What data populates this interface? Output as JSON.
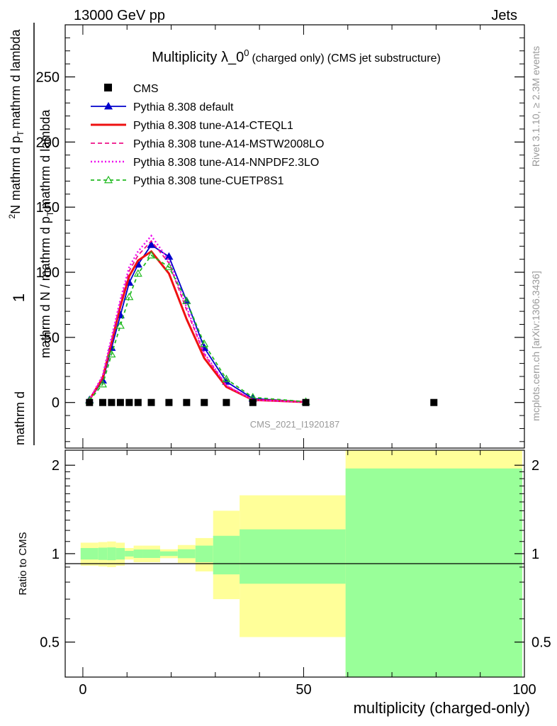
{
  "header": {
    "left": "13000 GeV pp",
    "right": "Jets"
  },
  "title": {
    "main": "Multiplicity λ_0",
    "sup": "0",
    "small": "(charged only)",
    "tail": "(CMS jet substructure)"
  },
  "side_labels": {
    "rivet": "Rivet 3.1.10, ≥ 2.3M events",
    "mcplots": "mcplots.cern.ch [arXiv:1306.3436]"
  },
  "watermark": "CMS_2021_I1920187",
  "ylabel_main": {
    "one": "1",
    "den_a": "mathrm d N / mathrm d p",
    "den_sub": "T",
    "den_b": "mathrm d lambda",
    "num_a": "mathrm d",
    "num_sup": "2",
    "num_b": "N",
    "num_c": "mathrm d p",
    "num_sub": "T",
    "num_d": "mathrm d lambda"
  },
  "ylabel_ratio": "Ratio to CMS",
  "xlabel": "multiplicity (charged-only)",
  "chart_data": [
    {
      "type": "line",
      "panel": "main",
      "ylim": [
        -35,
        290
      ],
      "xlim": [
        -4,
        100
      ],
      "yticks": [
        0,
        50,
        100,
        150,
        200,
        250
      ],
      "ytick_labels": [
        "0",
        "50",
        "100",
        "150",
        "200",
        "250"
      ],
      "legend_placement": "top-left",
      "series": [
        {
          "name": "CMS",
          "style": "data",
          "color": "#000000",
          "x": [
            1.5,
            4.5,
            6.5,
            8.5,
            10.5,
            12.5,
            15.5,
            19.5,
            23.5,
            27.5,
            32.5,
            38.5,
            50.5,
            79.5
          ],
          "y": [
            0,
            0,
            0,
            0,
            0,
            0,
            0,
            0,
            0,
            0,
            0,
            0,
            0,
            0
          ]
        },
        {
          "name": "Pythia 8.308 default",
          "style": "solid-triangle",
          "color": "#0000cc",
          "x": [
            1.5,
            4.5,
            6.5,
            8.5,
            10.5,
            12.5,
            15.5,
            19.5,
            23.5,
            27.5,
            32.5,
            38.5,
            50.5
          ],
          "y": [
            2,
            17,
            42,
            67,
            92,
            106,
            121,
            112,
            78,
            42,
            16,
            3,
            0.5
          ]
        },
        {
          "name": "Pythia 8.308 tune-A14-CTEQL1",
          "style": "solid-thick",
          "color": "#ee1111",
          "x": [
            1.5,
            4.5,
            6.5,
            8.5,
            10.5,
            12.5,
            15.5,
            19.5,
            23.5,
            27.5,
            32.5,
            38.5,
            50.5
          ],
          "y": [
            2,
            19,
            46,
            74,
            97,
            109,
            116,
            99,
            64,
            34,
            12,
            2,
            0.3
          ]
        },
        {
          "name": "Pythia 8.308 tune-A14-MSTW2008LO",
          "style": "dashed",
          "color": "#ee1188",
          "x": [
            1.5,
            4.5,
            6.5,
            8.5,
            10.5,
            12.5,
            15.5,
            19.5,
            23.5,
            27.5,
            32.5,
            38.5,
            50.5
          ],
          "y": [
            2,
            20,
            48,
            77,
            101,
            113,
            124,
            107,
            71,
            37,
            13,
            2,
            0.3
          ]
        },
        {
          "name": "Pythia 8.308 tune-A14-NNPDF2.3LO",
          "style": "dotted",
          "color": "#ee11ee",
          "x": [
            1.5,
            4.5,
            6.5,
            8.5,
            10.5,
            12.5,
            15.5,
            19.5,
            23.5,
            27.5,
            32.5,
            38.5,
            50.5
          ],
          "y": [
            2,
            21,
            50,
            79,
            104,
            116,
            128,
            109,
            73,
            38,
            13,
            2,
            0.3
          ]
        },
        {
          "name": "Pythia 8.308 tune-CUETP8S1",
          "style": "dashed-open-triangle",
          "color": "#22bb22",
          "x": [
            1.5,
            4.5,
            6.5,
            8.5,
            10.5,
            12.5,
            15.5,
            19.5,
            23.5,
            27.5,
            32.5,
            38.5,
            50.5
          ],
          "y": [
            1.5,
            14,
            37,
            59,
            81,
            99,
            113,
            104,
            78,
            45,
            18,
            4,
            0.6
          ]
        }
      ]
    },
    {
      "type": "area",
      "panel": "ratio",
      "ylim": [
        0.38,
        2.25
      ],
      "xticks": [
        0,
        50,
        100
      ],
      "xtick_labels": [
        "0",
        "50",
        "100"
      ],
      "yticks": [
        0.5,
        1,
        2
      ],
      "ytick_labels": [
        "0.5",
        "1",
        "2"
      ],
      "reference_line": 1,
      "bands": [
        {
          "x0": -0.5,
          "x1": 3.5,
          "y_lo": 0.91,
          "y_hi": 1.09,
          "g_lo": 0.955,
          "g_hi": 1.045
        },
        {
          "x0": 3.5,
          "x1": 5.5,
          "y_lo": 0.905,
          "y_hi": 1.095,
          "g_lo": 0.952,
          "g_hi": 1.048
        },
        {
          "x0": 5.5,
          "x1": 7.5,
          "y_lo": 0.9,
          "y_hi": 1.1,
          "g_lo": 0.95,
          "g_hi": 1.05
        },
        {
          "x0": 7.5,
          "x1": 9.5,
          "y_lo": 0.91,
          "y_hi": 1.09,
          "g_lo": 0.955,
          "g_hi": 1.045
        },
        {
          "x0": 9.5,
          "x1": 11.5,
          "y_lo": 0.955,
          "y_hi": 1.045,
          "g_lo": 0.978,
          "g_hi": 1.022
        },
        {
          "x0": 11.5,
          "x1": 13.5,
          "y_lo": 0.935,
          "y_hi": 1.065,
          "g_lo": 0.967,
          "g_hi": 1.033
        },
        {
          "x0": 13.5,
          "x1": 17.5,
          "y_lo": 0.935,
          "y_hi": 1.065,
          "g_lo": 0.967,
          "g_hi": 1.033
        },
        {
          "x0": 17.5,
          "x1": 21.5,
          "y_lo": 0.965,
          "y_hi": 1.035,
          "g_lo": 0.982,
          "g_hi": 1.018
        },
        {
          "x0": 21.5,
          "x1": 25.5,
          "y_lo": 0.93,
          "y_hi": 1.07,
          "g_lo": 0.965,
          "g_hi": 1.035
        },
        {
          "x0": 25.5,
          "x1": 29.5,
          "y_lo": 0.87,
          "y_hi": 1.13,
          "g_lo": 0.935,
          "g_hi": 1.065
        },
        {
          "x0": 29.5,
          "x1": 35.5,
          "y_lo": 0.7,
          "y_hi": 1.4,
          "g_lo": 0.85,
          "g_hi": 1.15
        },
        {
          "x0": 35.5,
          "x1": 59.5,
          "y_lo": 0.52,
          "y_hi": 1.58,
          "g_lo": 0.79,
          "g_hi": 1.21
        },
        {
          "x0": 59.5,
          "x1": 99.5,
          "y_lo": 0.38,
          "y_hi": 2.25,
          "g_lo": 0.38,
          "g_hi": 1.95
        }
      ]
    }
  ],
  "colors": {
    "yellow_band": "#ffff99",
    "green_band": "#99ff99",
    "axis": "#000000",
    "watermark": "#999999"
  }
}
